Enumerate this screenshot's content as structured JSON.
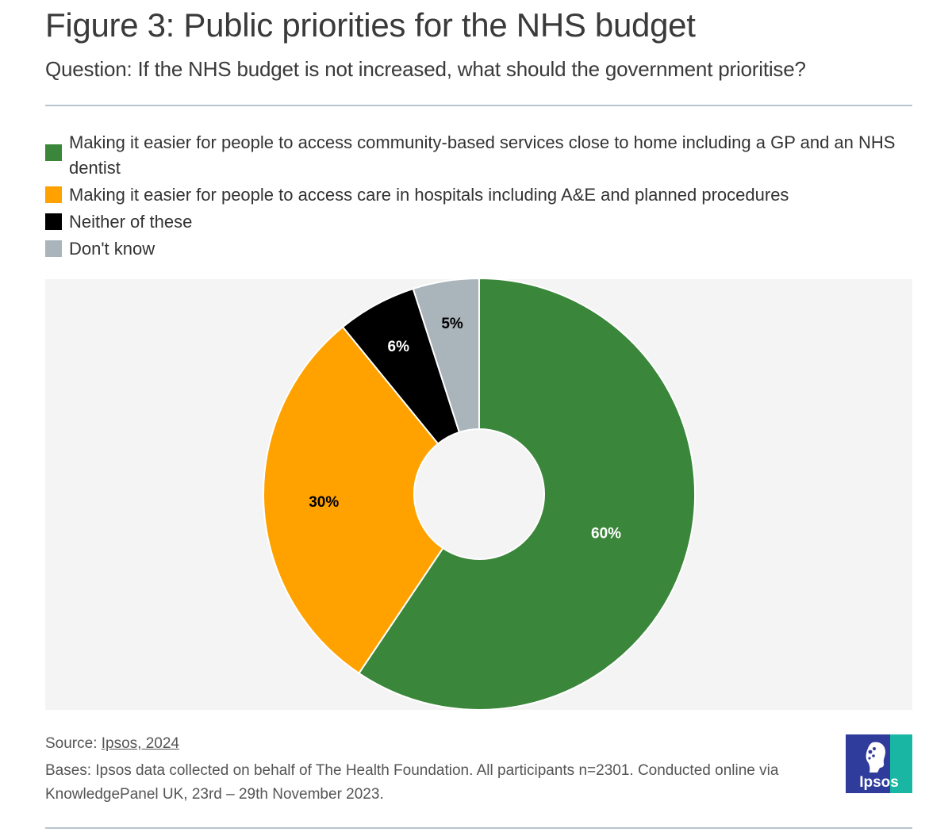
{
  "header": {
    "title": "Figure 3: Public priorities for the NHS budget",
    "subtitle": "Question: If the NHS budget is not increased, what should the government prioritise?"
  },
  "legend": [
    {
      "label": "Making it easier for people to access community-based services close to home including a GP and an NHS dentist",
      "color": "#3a863a"
    },
    {
      "label": "Making it easier for people to access care in hospitals including A&E and planned procedures",
      "color": "#ffa200"
    },
    {
      "label": "Neither of these",
      "color": "#000000"
    },
    {
      "label": "Don't know",
      "color": "#aab4bb"
    }
  ],
  "chart_data": {
    "type": "pie",
    "donut": true,
    "categories": [
      "Making it easier for people to access community-based services close to home including a GP and an NHS dentist",
      "Making it easier for people to access care in hospitals including A&E and planned procedures",
      "Neither of these",
      "Don't know"
    ],
    "values": [
      60,
      30,
      6,
      5
    ],
    "data_labels": [
      "60%",
      "30%",
      "6%",
      "5%"
    ],
    "colors": [
      "#3a863a",
      "#ffa200",
      "#000000",
      "#aab4bb"
    ],
    "label_colors": [
      "#ffffff",
      "#000000",
      "#ffffff",
      "#000000"
    ],
    "start": "top, clockwise",
    "legend_position": "top"
  },
  "footer": {
    "source_prefix": "Source: ",
    "source_link": "Ipsos, 2024",
    "bases": "Bases: Ipsos data collected on behalf of The Health Foundation. All participants n=2301. Conducted online via KnowledgePanel UK, 23rd – 29th November 2023.",
    "logo_text": "Ipsos"
  }
}
